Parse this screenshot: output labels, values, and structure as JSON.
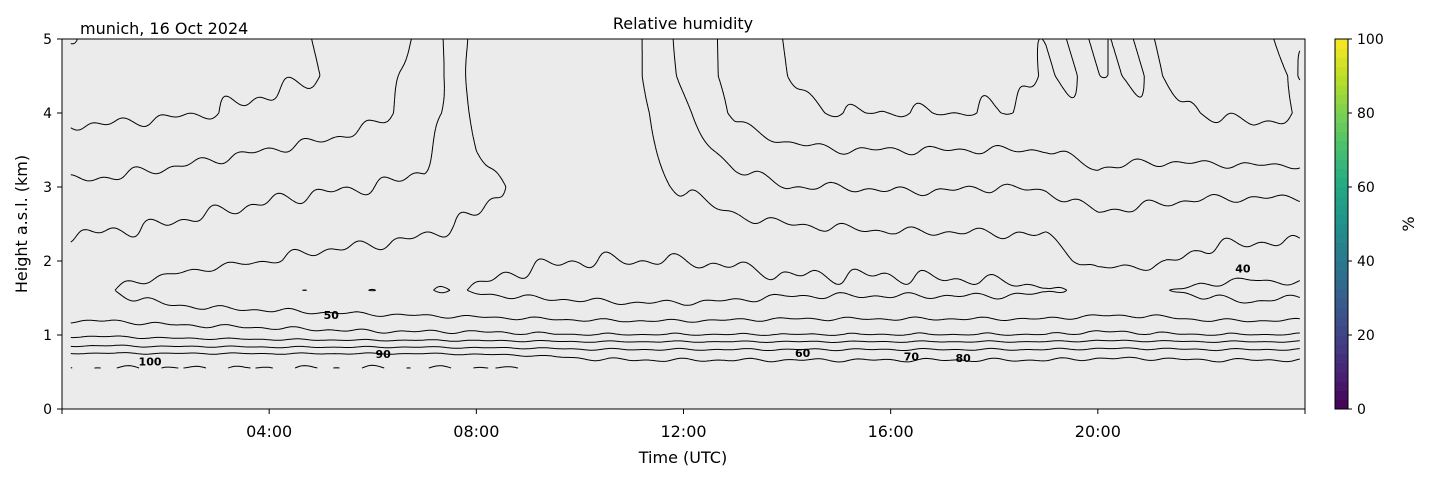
{
  "chart_data": {
    "type": "heatmap",
    "subtype": "filled-contour",
    "title": "Relative humidity",
    "location_label": "munich, 16 Oct 2024",
    "xlabel": "Time (UTC)",
    "ylabel": "Height a.s.l. (km)",
    "xlim_hours": [
      0,
      24
    ],
    "ylim": [
      0,
      5
    ],
    "xticks": [
      "04:00",
      "08:00",
      "12:00",
      "16:00",
      "20:00"
    ],
    "xtick_hours": [
      4,
      8,
      12,
      16,
      20
    ],
    "yticks": [
      "0",
      "1",
      "2",
      "3",
      "4",
      "5"
    ],
    "colorbar": {
      "label": "%",
      "range": [
        0,
        100
      ],
      "ticks": [
        "0",
        "20",
        "40",
        "60",
        "80",
        "100"
      ],
      "colormap": "viridis"
    },
    "no_data_color": "#ebebeb",
    "data_time_range_hours": [
      0.17,
      23.9
    ],
    "contour_levels": [
      40,
      50,
      60,
      70,
      80,
      90,
      100
    ],
    "contour_labels": [
      "100",
      "90",
      "50",
      "60",
      "70",
      "80",
      "40"
    ],
    "grid_hours": [
      0,
      1,
      2,
      3,
      4,
      5,
      6,
      7,
      8,
      9,
      10,
      11,
      12,
      13,
      14,
      15,
      16,
      17,
      18,
      19,
      20,
      21,
      22,
      23,
      24
    ],
    "grid_heights_km": [
      0.55,
      0.7,
      0.85,
      1.0,
      1.3,
      1.6,
      2.0,
      2.5,
      3.0,
      3.5,
      4.0,
      4.5,
      5.0
    ],
    "values_percent": [
      [
        100,
        100,
        100,
        100,
        100,
        100,
        100,
        100,
        100,
        100,
        96,
        95,
        95,
        95,
        95,
        95,
        95,
        95,
        95,
        95,
        96,
        96,
        95,
        95,
        95
      ],
      [
        95,
        95,
        95,
        95,
        95,
        95,
        95,
        95,
        94,
        92,
        89,
        88,
        88,
        88,
        88,
        88,
        88,
        88,
        88,
        88,
        89,
        89,
        88,
        88,
        88
      ],
      [
        80,
        80,
        79,
        79,
        78,
        78,
        78,
        78,
        77,
        77,
        76,
        76,
        76,
        76,
        76,
        76,
        76,
        76,
        76,
        76,
        77,
        77,
        76,
        76,
        76
      ],
      [
        68,
        68,
        66,
        65,
        64,
        63,
        62,
        62,
        62,
        61,
        60,
        60,
        60,
        60,
        60,
        60,
        60,
        60,
        60,
        60,
        62,
        61,
        60,
        60,
        60
      ],
      [
        55,
        55,
        53,
        52,
        51,
        50,
        49,
        48,
        47,
        46,
        45,
        44,
        44,
        45,
        46,
        46,
        46,
        46,
        46,
        46,
        48,
        48,
        45,
        44,
        45
      ],
      [
        52,
        50,
        45,
        42,
        41,
        41,
        41,
        41,
        39,
        37,
        36,
        35,
        35,
        36,
        38,
        38,
        38,
        38,
        38,
        39,
        44,
        42,
        38,
        36,
        38
      ],
      [
        56,
        56,
        55,
        52,
        50,
        48,
        47,
        46,
        44,
        41,
        40,
        40,
        40,
        41,
        42,
        42,
        42,
        43,
        44,
        46,
        52,
        52,
        48,
        47,
        47
      ],
      [
        62,
        61,
        60,
        58,
        57,
        55,
        54,
        52,
        49,
        46,
        45,
        45,
        46,
        48,
        50,
        51,
        52,
        52,
        52,
        52,
        57,
        56,
        54,
        53,
        53
      ],
      [
        69,
        68,
        66,
        64,
        62,
        61,
        60,
        58,
        52,
        48,
        47,
        47,
        50,
        56,
        60,
        60,
        61,
        61,
        60,
        61,
        66,
        64,
        63,
        63,
        63
      ],
      [
        76,
        75,
        74,
        72,
        70,
        68,
        66,
        62,
        50,
        46,
        45,
        46,
        54,
        64,
        68,
        70,
        70,
        70,
        70,
        70,
        74,
        73,
        74,
        75,
        75
      ],
      [
        82,
        82,
        81,
        80,
        78,
        76,
        72,
        66,
        48,
        45,
        45,
        46,
        57,
        72,
        78,
        80,
        80,
        80,
        80,
        78,
        78,
        78,
        80,
        82,
        80
      ],
      [
        83,
        84,
        84,
        83,
        82,
        80,
        75,
        66,
        47,
        44,
        44,
        47,
        62,
        74,
        80,
        84,
        85,
        84,
        82,
        80,
        80,
        80,
        82,
        83,
        80
      ],
      [
        80,
        83,
        84,
        83,
        82,
        80,
        76,
        68,
        46,
        43,
        43,
        47,
        62,
        74,
        80,
        84,
        85,
        84,
        82,
        80,
        80,
        80,
        82,
        82,
        78
      ]
    ]
  }
}
